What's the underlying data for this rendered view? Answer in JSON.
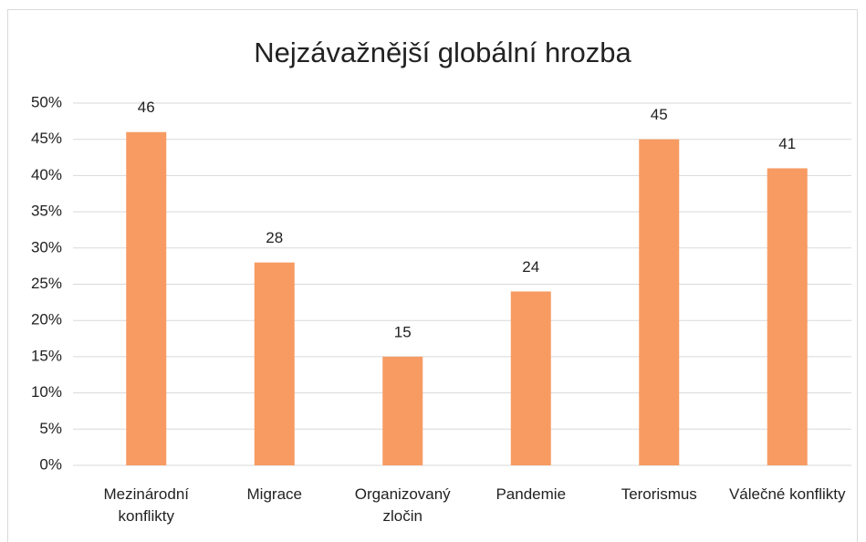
{
  "chart_data": {
    "type": "bar",
    "title": "Nejzávažnější globální hrozba",
    "categories": [
      "Mezinárodní konflikty",
      "Migrace",
      "Organizovaný zločin",
      "Pandemie",
      "Terorismus",
      "Válečné konflikty"
    ],
    "values": [
      46,
      28,
      15,
      24,
      45,
      41
    ],
    "color": "#f79b63",
    "ylim": [
      0,
      50
    ],
    "yticks": [
      {
        "value": 0,
        "label": "0%"
      },
      {
        "value": 5,
        "label": "5%"
      },
      {
        "value": 10,
        "label": "10%"
      },
      {
        "value": 15,
        "label": "15%"
      },
      {
        "value": 20,
        "label": "20%"
      },
      {
        "value": 25,
        "label": "25%"
      },
      {
        "value": 30,
        "label": "30%"
      },
      {
        "value": 35,
        "label": "35%"
      },
      {
        "value": 40,
        "label": "40%"
      },
      {
        "value": 45,
        "label": "45%"
      },
      {
        "value": 50,
        "label": "50%"
      }
    ],
    "grid": true
  }
}
